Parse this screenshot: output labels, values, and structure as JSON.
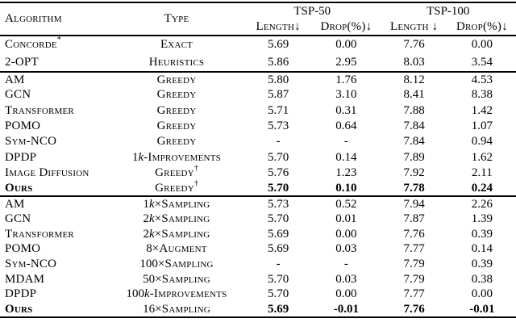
{
  "colors": {
    "background": "#ffffff",
    "text": "#000000",
    "rule": "#000000"
  },
  "table": {
    "header": {
      "algorithm_label": "Algorithm",
      "type_label": "Type",
      "groups": [
        {
          "label": "TSP-50",
          "sub_labels": [
            "Length↓",
            "Drop(%)↓"
          ]
        },
        {
          "label": "TSP-100",
          "sub_labels": [
            "Length ↓",
            "Drop(%)↓"
          ]
        }
      ]
    },
    "sections": [
      {
        "rows": [
          {
            "algorithm": "Concorde",
            "algorithm_sup": "*",
            "type": {
              "rest": "Exact"
            },
            "values": [
              "5.69",
              "0.00",
              "7.76",
              "0.00"
            ],
            "bold": false
          },
          {
            "algorithm": "2-OPT",
            "type": {
              "rest": "Heuristics"
            },
            "values": [
              "5.86",
              "2.95",
              "8.03",
              "3.54"
            ],
            "bold": false
          }
        ]
      },
      {
        "rows": [
          {
            "algorithm": "AM",
            "type": {
              "rest": "Greedy"
            },
            "values": [
              "5.80",
              "1.76",
              "8.12",
              "4.53"
            ],
            "bold": false
          },
          {
            "algorithm": "GCN",
            "type": {
              "rest": "Greedy"
            },
            "values": [
              "5.87",
              "3.10",
              "8.41",
              "8.38"
            ],
            "bold": false
          },
          {
            "algorithm": "Transformer",
            "type": {
              "rest": "Greedy"
            },
            "values": [
              "5.71",
              "0.31",
              "7.88",
              "1.42"
            ],
            "bold": false
          },
          {
            "algorithm": "POMO",
            "type": {
              "rest": "Greedy"
            },
            "values": [
              "5.73",
              "0.64",
              "7.84",
              "1.07"
            ],
            "bold": false
          },
          {
            "algorithm": "Sym-NCO",
            "type": {
              "rest": "Greedy"
            },
            "values": [
              "-",
              "-",
              "7.84",
              "0.94"
            ],
            "bold": false
          },
          {
            "algorithm": "DPDP",
            "type": {
              "num": "1",
              "k": "k",
              "rest": "-Improvements"
            },
            "values": [
              "5.70",
              "0.14",
              "7.89",
              "1.62"
            ],
            "bold": false
          },
          {
            "algorithm": "Image Diffusion",
            "type": {
              "rest": "Greedy",
              "sup": "†"
            },
            "values": [
              "5.76",
              "1.23",
              "7.92",
              "2.11"
            ],
            "bold": false
          },
          {
            "algorithm": "Ours",
            "type": {
              "rest": "Greedy",
              "sup": "†"
            },
            "values": [
              "5.70",
              "0.10",
              "7.78",
              "0.24"
            ],
            "bold": true
          }
        ]
      },
      {
        "rows": [
          {
            "algorithm": "AM",
            "type": {
              "num": "1",
              "k": "k",
              "rest": "×Sampling"
            },
            "values": [
              "5.73",
              "0.52",
              "7.94",
              "2.26"
            ],
            "bold": false
          },
          {
            "algorithm": "GCN",
            "type": {
              "num": "2",
              "k": "k",
              "rest": "×Sampling"
            },
            "values": [
              "5.70",
              "0.01",
              "7.87",
              "1.39"
            ],
            "bold": false
          },
          {
            "algorithm": "Transformer",
            "type": {
              "num": "2",
              "k": "k",
              "rest": "×Sampling"
            },
            "values": [
              "5.69",
              "0.00",
              "7.76",
              "0.39"
            ],
            "bold": false
          },
          {
            "algorithm": "POMO",
            "type": {
              "num": "8",
              "rest": "×Augment"
            },
            "values": [
              "5.69",
              "0.03",
              "7.77",
              "0.14"
            ],
            "bold": false
          },
          {
            "algorithm": "Sym-NCO",
            "type": {
              "num": "100",
              "rest": "×Sampling"
            },
            "values": [
              "-",
              "-",
              "7.79",
              "0.39"
            ],
            "bold": false
          },
          {
            "algorithm": "MDAM",
            "type": {
              "num": "50",
              "rest": "×Sampling"
            },
            "values": [
              "5.70",
              "0.03",
              "7.79",
              "0.38"
            ],
            "bold": false
          },
          {
            "algorithm": "DPDP",
            "type": {
              "num": "100",
              "k": "k",
              "rest": "-Improvements"
            },
            "values": [
              "5.70",
              "0.00",
              "7.77",
              "0.00"
            ],
            "bold": false
          },
          {
            "algorithm": "Ours",
            "type": {
              "num": "16",
              "rest": "×Sampling"
            },
            "values": [
              "5.69",
              "-0.01",
              "7.76",
              "-0.01"
            ],
            "bold": true
          }
        ]
      }
    ]
  }
}
